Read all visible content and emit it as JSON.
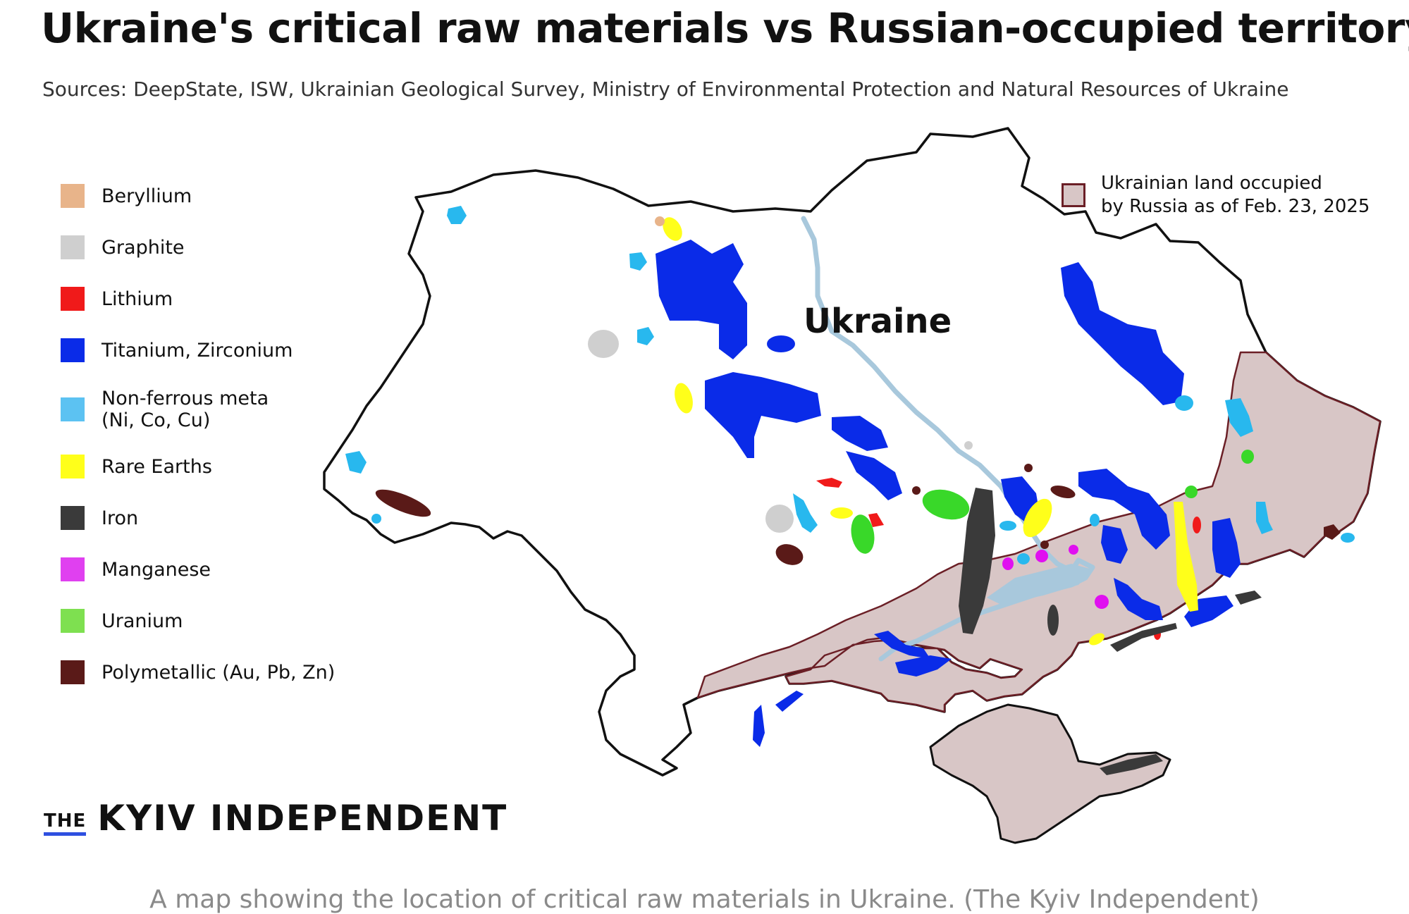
{
  "title": "Ukraine's critical raw materials vs Russian-occupied territory",
  "sources": "Sources: DeepState, ISW, Ukrainian Geological Survey, Ministry of Environmental Protection and Natural Resources of Ukraine",
  "legend": [
    {
      "label": "Beryllium",
      "color": "#e8b48a"
    },
    {
      "label": "Graphite",
      "color": "#cfcfcf"
    },
    {
      "label": "Lithium",
      "color": "#f01a1a"
    },
    {
      "label": "Titanium, Zirconium",
      "color": "#0a2be8"
    },
    {
      "label": "Non-ferrous meta",
      "label2": "(Ni, Co, Cu)",
      "color": "#5cc2f2"
    },
    {
      "label": "Rare Earths",
      "color": "#ffff1a"
    },
    {
      "label": "Iron",
      "color": "#3a3a3a"
    },
    {
      "label": "Manganese",
      "color": "#e040f0"
    },
    {
      "label": "Uranium",
      "color": "#7ee050"
    },
    {
      "label": "Polymetallic (Au, Pb, Zn)",
      "color": "#5a1a18"
    }
  ],
  "occupied_legend": {
    "line1": "Ukrainian land occupied",
    "line2": "by Russia as of Feb. 23, 2025",
    "fill": "#d8c6c6",
    "border": "#6b1f26"
  },
  "map_label": "Ukraine",
  "river_color": "#a8c8dc",
  "brand": {
    "the": "THE",
    "name": "KYIV INDEPENDENT",
    "accent": "#2e4fe0"
  },
  "caption": "A map showing the location of critical raw materials in Ukraine. (The Kyiv Independent)"
}
